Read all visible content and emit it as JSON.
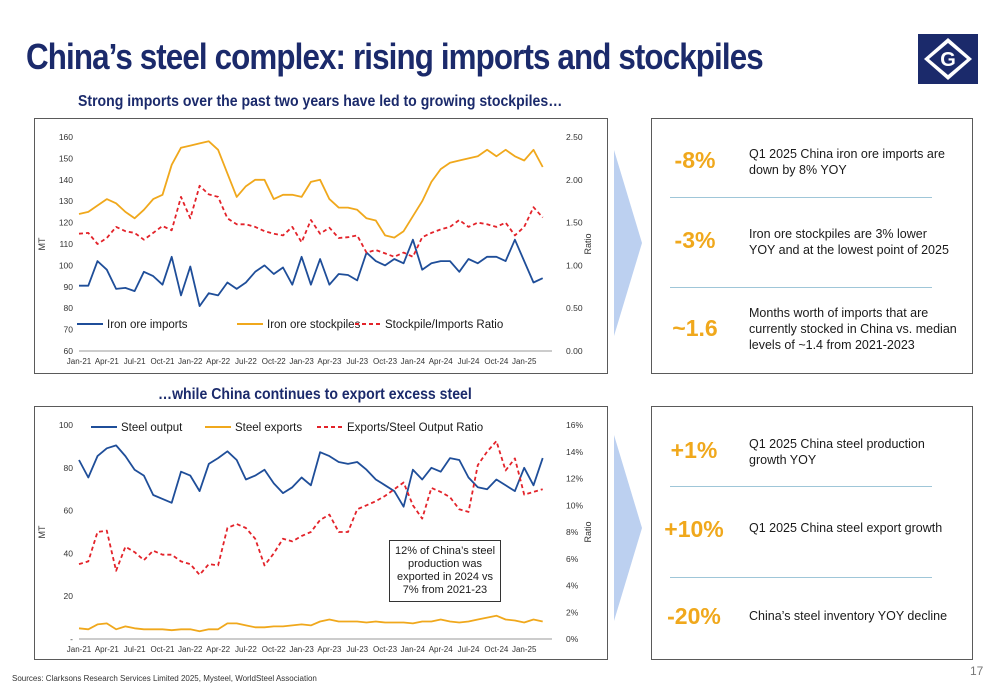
{
  "page": {
    "title": "China’s steel complex: rising imports and stockpiles",
    "logo_letter": "G",
    "source": "Sources: Clarksons Research Services Limited 2025, Mysteel, WorldSteel Association",
    "page_number": "17",
    "colors": {
      "navy": "#1b2a6b",
      "blue_series": "#1f4e99",
      "orange": "#f0a81c",
      "red": "#e3232a",
      "arrow": "#bcd0f0"
    }
  },
  "top": {
    "subtitle": "Strong imports over the past two years have led to growing stockpiles…",
    "stats": [
      {
        "value": "-8%",
        "text": [
          "Q1 2025 China iron ore imports are",
          "down by 8% YOY"
        ]
      },
      {
        "value": "-3%",
        "text": [
          "Iron ore stockpiles are 3% lower",
          "YOY and at the lowest point of 2025"
        ]
      },
      {
        "value": "~1.6",
        "text": [
          "Months worth of imports that are",
          "currently stocked in China vs. median",
          "levels of ~1.4 from 2021-2023"
        ]
      }
    ]
  },
  "bottom": {
    "subtitle": "…while China continues to export excess steel",
    "annotation": [
      "12% of China’s steel",
      "production was",
      "exported in 2024 vs",
      "7% from 2021-23"
    ],
    "stats": [
      {
        "value": "+1%",
        "text": [
          "Q1 2025 China steel production",
          "growth YOY"
        ]
      },
      {
        "value": "+10%",
        "text": [
          "Q1 2025 China steel export growth"
        ]
      },
      {
        "value": "-20%",
        "text": [
          "China’s steel inventory YOY decline"
        ]
      }
    ]
  },
  "chart_data": [
    {
      "type": "line",
      "x_ticks": [
        "Jan-21",
        "Apr-21",
        "Jul-21",
        "Oct-21",
        "Jan-22",
        "Apr-22",
        "Jul-22",
        "Oct-22",
        "Jan-23",
        "Apr-23",
        "Jul-23",
        "Oct-23",
        "Jan-24",
        "Apr-24",
        "Jul-24",
        "Oct-24",
        "Jan-25"
      ],
      "x_range_months": [
        0,
        51
      ],
      "ylabel": "MT",
      "ylim": [
        60,
        160
      ],
      "y_ticks": [
        "60",
        "70",
        "80",
        "90",
        "100",
        "110",
        "120",
        "130",
        "140",
        "150",
        "160"
      ],
      "y2label": "Ratio",
      "y2lim": [
        0,
        2.5
      ],
      "y2_ticks": [
        "0.00",
        "0.50",
        "1.00",
        "1.50",
        "2.00",
        "2.50"
      ],
      "legend_position": "bottom",
      "series": [
        {
          "name": "Iron ore imports",
          "axis": "left",
          "color": "#1f4e99",
          "dash": false,
          "values": [
            90.5,
            90.5,
            102,
            98,
            89,
            89.5,
            88,
            97,
            95,
            91,
            104,
            86,
            99.5,
            81,
            87,
            86,
            92,
            89,
            92,
            97,
            100,
            96,
            99,
            91,
            104,
            91,
            103,
            91,
            96,
            95.5,
            93,
            106,
            102,
            100,
            103,
            101,
            112,
            98,
            101,
            102,
            102,
            97,
            103,
            101,
            104,
            104,
            102,
            112,
            102,
            92,
            94
          ]
        },
        {
          "name": "Iron ore stockpiles",
          "axis": "left",
          "color": "#f0a81c",
          "dash": false,
          "values": [
            124,
            125,
            128,
            131,
            129,
            125,
            122,
            126,
            131,
            133,
            147,
            155,
            156,
            157,
            158,
            154,
            143,
            132,
            137,
            140,
            140,
            131,
            133,
            133,
            132,
            139,
            140,
            131,
            127,
            127,
            126,
            122,
            121,
            114,
            113,
            116,
            123,
            130,
            139,
            145,
            148,
            149,
            150,
            151,
            154,
            151,
            154,
            151,
            149,
            154,
            146
          ]
        },
        {
          "name": "Stockpile/Imports Ratio",
          "axis": "right",
          "color": "#e3232a",
          "dash": true,
          "values": [
            1.37,
            1.38,
            1.25,
            1.32,
            1.45,
            1.4,
            1.38,
            1.3,
            1.38,
            1.46,
            1.41,
            1.8,
            1.55,
            1.93,
            1.83,
            1.8,
            1.55,
            1.48,
            1.48,
            1.45,
            1.4,
            1.37,
            1.35,
            1.45,
            1.27,
            1.53,
            1.37,
            1.44,
            1.32,
            1.33,
            1.35,
            1.15,
            1.18,
            1.14,
            1.1,
            1.15,
            1.1,
            1.33,
            1.38,
            1.42,
            1.45,
            1.53,
            1.45,
            1.5,
            1.48,
            1.45,
            1.5,
            1.35,
            1.45,
            1.68,
            1.56
          ]
        }
      ]
    },
    {
      "type": "line",
      "x_ticks": [
        "Jan-21",
        "Apr-21",
        "Jul-21",
        "Oct-21",
        "Jan-22",
        "Apr-22",
        "Jul-22",
        "Oct-22",
        "Jan-23",
        "Apr-23",
        "Jul-23",
        "Oct-23",
        "Jan-24",
        "Apr-24",
        "Jul-24",
        "Oct-24",
        "Jan-25"
      ],
      "x_range_months": [
        0,
        51
      ],
      "ylabel": "MT",
      "ylim": [
        0,
        110
      ],
      "y_ticks": [
        "-",
        "20",
        "40",
        "60",
        "80",
        "100"
      ],
      "y2label": "Ratio",
      "y2lim": [
        0,
        0.16
      ],
      "y2_ticks": [
        "0%",
        "2%",
        "4%",
        "6%",
        "8%",
        "10%",
        "12%",
        "14%",
        "16%"
      ],
      "legend_position": "top",
      "series": [
        {
          "name": "Steel output",
          "axis": "left",
          "color": "#1f4e99",
          "dash": false,
          "values": [
            92,
            83,
            94,
            98,
            99.5,
            94,
            87,
            84,
            74,
            72,
            70,
            86,
            84,
            76,
            90,
            93,
            96.5,
            92,
            82,
            84,
            87,
            80,
            75,
            78,
            83,
            79,
            96,
            94,
            91,
            90,
            91,
            87,
            82,
            79,
            76,
            68,
            87,
            82,
            88,
            86,
            93,
            92,
            83,
            78,
            77,
            82,
            79,
            76,
            88,
            79,
            93
          ]
        },
        {
          "name": "Steel exports",
          "axis": "left",
          "color": "#f0a81c",
          "dash": false,
          "values": [
            5.5,
            5,
            7.5,
            8,
            5,
            6.5,
            5.5,
            5,
            5,
            5,
            4.5,
            5,
            5,
            4,
            5,
            5,
            8,
            8,
            7,
            6,
            6,
            6.5,
            6.5,
            7,
            7.5,
            7,
            9,
            10,
            9,
            9,
            9,
            8.5,
            9,
            8.5,
            8.5,
            8.5,
            8,
            9,
            9,
            10,
            9,
            8.5,
            9,
            10,
            11,
            12,
            10,
            9.5,
            8.5,
            10,
            9
          ]
        },
        {
          "name": "Exports/Steel Output Ratio",
          "axis": "right",
          "color": "#e3232a",
          "dash": true,
          "values": [
            0.056,
            0.058,
            0.08,
            0.081,
            0.051,
            0.069,
            0.065,
            0.059,
            0.066,
            0.063,
            0.063,
            0.058,
            0.056,
            0.048,
            0.056,
            0.055,
            0.083,
            0.086,
            0.083,
            0.075,
            0.055,
            0.064,
            0.075,
            0.073,
            0.077,
            0.08,
            0.089,
            0.093,
            0.08,
            0.08,
            0.097,
            0.1,
            0.103,
            0.107,
            0.112,
            0.117,
            0.1,
            0.09,
            0.113,
            0.11,
            0.106,
            0.097,
            0.095,
            0.13,
            0.14,
            0.148,
            0.126,
            0.135,
            0.108,
            0.11,
            0.112
          ]
        }
      ]
    }
  ]
}
